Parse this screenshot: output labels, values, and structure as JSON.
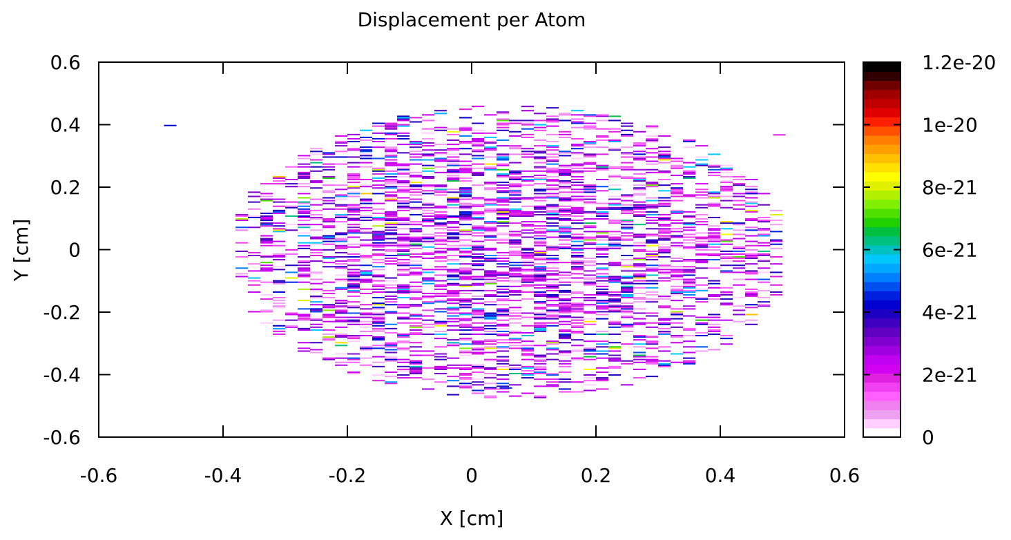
{
  "chart_data": {
    "type": "heatmap",
    "title": "Displacement per Atom",
    "xlabel": "X [cm]",
    "ylabel": "Y [cm]",
    "xlim": [
      -0.6,
      0.6
    ],
    "ylim": [
      -0.6,
      0.6
    ],
    "xticks": [
      {
        "value": -0.6,
        "label": "-0.6"
      },
      {
        "value": -0.4,
        "label": "-0.4"
      },
      {
        "value": -0.2,
        "label": "-0.2"
      },
      {
        "value": 0,
        "label": "0"
      },
      {
        "value": 0.2,
        "label": "0.2"
      },
      {
        "value": 0.4,
        "label": "0.4"
      },
      {
        "value": 0.6,
        "label": "0.6"
      }
    ],
    "yticks": [
      {
        "value": -0.6,
        "label": "-0.6"
      },
      {
        "value": -0.4,
        "label": "-0.4"
      },
      {
        "value": -0.2,
        "label": "-0.2"
      },
      {
        "value": 0,
        "label": "0"
      },
      {
        "value": 0.2,
        "label": "0.2"
      },
      {
        "value": 0.4,
        "label": "0.4"
      },
      {
        "value": 0.6,
        "label": "0.6"
      }
    ],
    "colorbar": {
      "range": [
        0,
        1.2e-20
      ],
      "ticks": [
        {
          "value": 0,
          "label": "0"
        },
        {
          "value": 2e-21,
          "label": "2e-21"
        },
        {
          "value": 4e-21,
          "label": "4e-21"
        },
        {
          "value": 6e-21,
          "label": "6e-21"
        },
        {
          "value": 8e-21,
          "label": "8e-21"
        },
        {
          "value": 1e-20,
          "label": "1e-20"
        },
        {
          "value": 1.2e-20,
          "label": "1.2e-20"
        }
      ],
      "colors": [
        "#ffffff",
        "#ffd0ff",
        "#f0a0f0",
        "#f080f0",
        "#ff60ff",
        "#f040f0",
        "#e020e0",
        "#d000f0",
        "#c000f0",
        "#a000e0",
        "#8000d0",
        "#6000c0",
        "#4000c0",
        "#2000c0",
        "#0000d0",
        "#0020e0",
        "#0050f0",
        "#0080ff",
        "#00a8ff",
        "#00c8ff",
        "#00c0c0",
        "#00c080",
        "#00c040",
        "#20d000",
        "#50e000",
        "#80f000",
        "#b0f000",
        "#e0f000",
        "#ffff00",
        "#ffe000",
        "#ffc000",
        "#ffa000",
        "#ff8000",
        "#ff5000",
        "#ff2000",
        "#e00000",
        "#c00000",
        "#a00000",
        "#700000",
        "#300000",
        "#000000"
      ]
    },
    "heatmap_grid": {
      "x_bin_width": 0.02,
      "y_bin_width": 0.0045
    },
    "data_description": "Sparse 2D histogram of displacement per atom within an elliptical region centered near (0.05, 0); most cells between 1e-21 and 4e-21 with a few up to ~9e-21.",
    "data_extent": {
      "center": [
        0.05,
        -0.01
      ],
      "semi_axis_x": 0.45,
      "semi_axis_y": 0.47
    },
    "outliers": [
      {
        "x": -0.495,
        "y": 0.395,
        "value": 4.2e-21
      },
      {
        "x": 0.485,
        "y": 0.365,
        "value": 1.8e-21
      },
      {
        "x": 0.045,
        "y": -0.445,
        "value": 4.4e-21
      }
    ],
    "grid": false,
    "legend": "colorbar-right"
  }
}
